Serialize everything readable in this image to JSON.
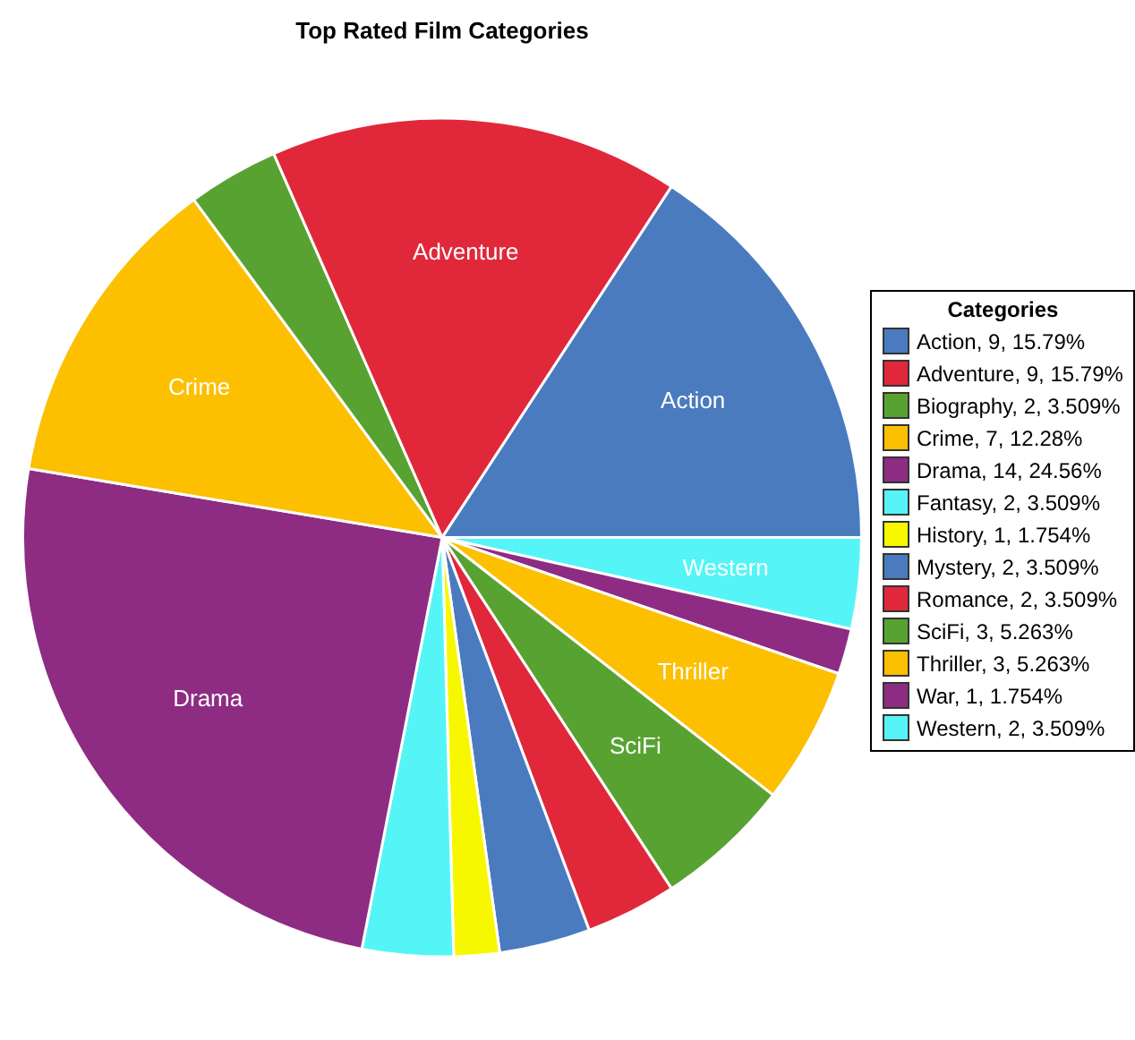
{
  "chart_data": {
    "type": "pie",
    "title": "Top Rated Film Categories",
    "legend_title": "Categories",
    "legend": "right",
    "categories": [
      "Action, 9, 15.79%",
      "Adventure, 9, 15.79%",
      "Biography, 2, 3.509%",
      "Crime, 7, 12.28%",
      "Drama, 14, 24.56%",
      "Fantasy, 2, 3.509%",
      "History, 1, 1.754%",
      "Mystery, 2, 3.509%",
      "Romance, 2, 3.509%",
      "SciFi, 3, 5.263%",
      "Thriller, 3, 5.263%",
      "War, 1, 1.754%",
      "Western, 2, 3.509%"
    ],
    "values": [
      15.79,
      15.79,
      3.509,
      12.28,
      24.56,
      3.509,
      1.754,
      3.509,
      3.509,
      5.263,
      5.263,
      1.754,
      3.509
    ],
    "colors": [
      "#4a7bbf",
      "#e0283a",
      "#58a232",
      "#fcc000",
      "#8e2c83",
      "#55f5f7",
      "#f7f700",
      "#4a7bbf",
      "#e0283a",
      "#58a232",
      "#fcc000",
      "#8e2c83",
      "#55f5f7"
    ],
    "annotations": [
      {
        "text": "Action",
        "x": "Action, 9, 15.79%"
      },
      {
        "text": "Adventure",
        "x": "Adventure, 9, 15.79%"
      },
      {
        "text": "Crime",
        "x": "Crime, 7, 12.28%"
      },
      {
        "text": "Drama",
        "x": "Drama, 14, 24.56%"
      },
      {
        "text": "SciFi",
        "x": "SciFi, 3, 5.263%"
      },
      {
        "text": "Thriller",
        "x": "Thriller, 3, 5.263%"
      },
      {
        "text": "Western",
        "x": "Western, 2, 3.509%"
      }
    ]
  }
}
